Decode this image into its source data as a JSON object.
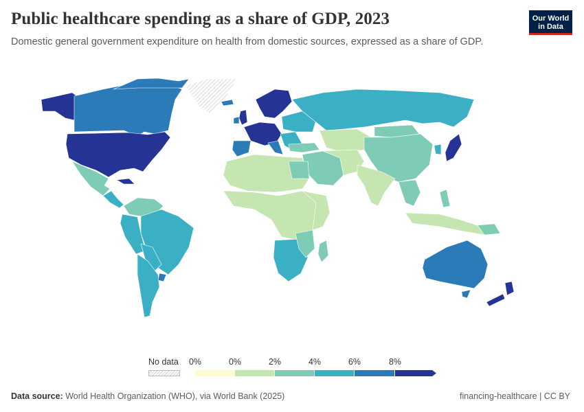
{
  "header": {
    "title": "Public healthcare spending as a share of GDP, 2023",
    "subtitle": "Domestic general government expenditure on health from domestic sources, expressed as a share of GDP.",
    "logo_line1": "Our World",
    "logo_line2": "in Data"
  },
  "colors": {
    "bin0": "#fdfcd0",
    "bin1": "#c5e6b0",
    "bin2": "#7ecbb6",
    "bin3": "#3bb0c4",
    "bin4": "#2b7bb9",
    "bin5": "#253494",
    "nodata": "#e6e6e6",
    "border": "#ffffff"
  },
  "legend": {
    "no_data_label": "No data",
    "ticks": [
      "0%",
      "0%",
      "2%",
      "4%",
      "6%",
      "8%"
    ]
  },
  "footer": {
    "source_label": "Data source:",
    "source_text": "World Health Organization (WHO), via World Bank (2025)",
    "right_text": "financing-healthcare | CC BY"
  }
}
